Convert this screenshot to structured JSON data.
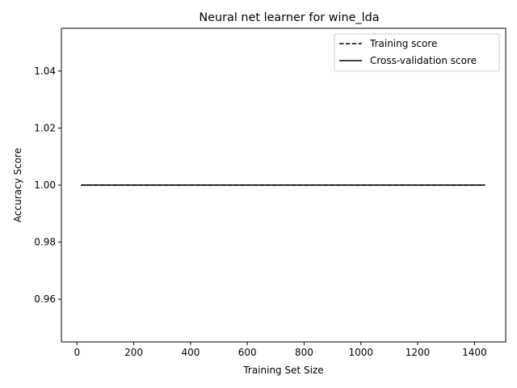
{
  "chart_data": {
    "type": "line",
    "title": "Neural net learner for wine_lda",
    "xlabel": "Training Set Size",
    "ylabel": "Accuracy Score",
    "xlim": [
      -55,
      1510
    ],
    "ylim": [
      0.945,
      1.055
    ],
    "xticks": [
      0,
      200,
      400,
      600,
      800,
      1000,
      1200,
      1400
    ],
    "yticks": [
      0.96,
      0.98,
      1.0,
      1.02,
      1.04
    ],
    "ytick_labels": [
      "0.96",
      "0.98",
      "1.00",
      "1.02",
      "1.04"
    ],
    "grid": false,
    "legend_position": "top-right",
    "series": [
      {
        "name": "Training score",
        "style": "dashed",
        "color": "#000000",
        "x": [
          14,
          1437
        ],
        "y": [
          1.0,
          1.0
        ]
      },
      {
        "name": "Cross-validation score",
        "style": "solid",
        "color": "#000000",
        "x": [
          14,
          1437
        ],
        "y": [
          1.0,
          1.0
        ]
      }
    ]
  }
}
